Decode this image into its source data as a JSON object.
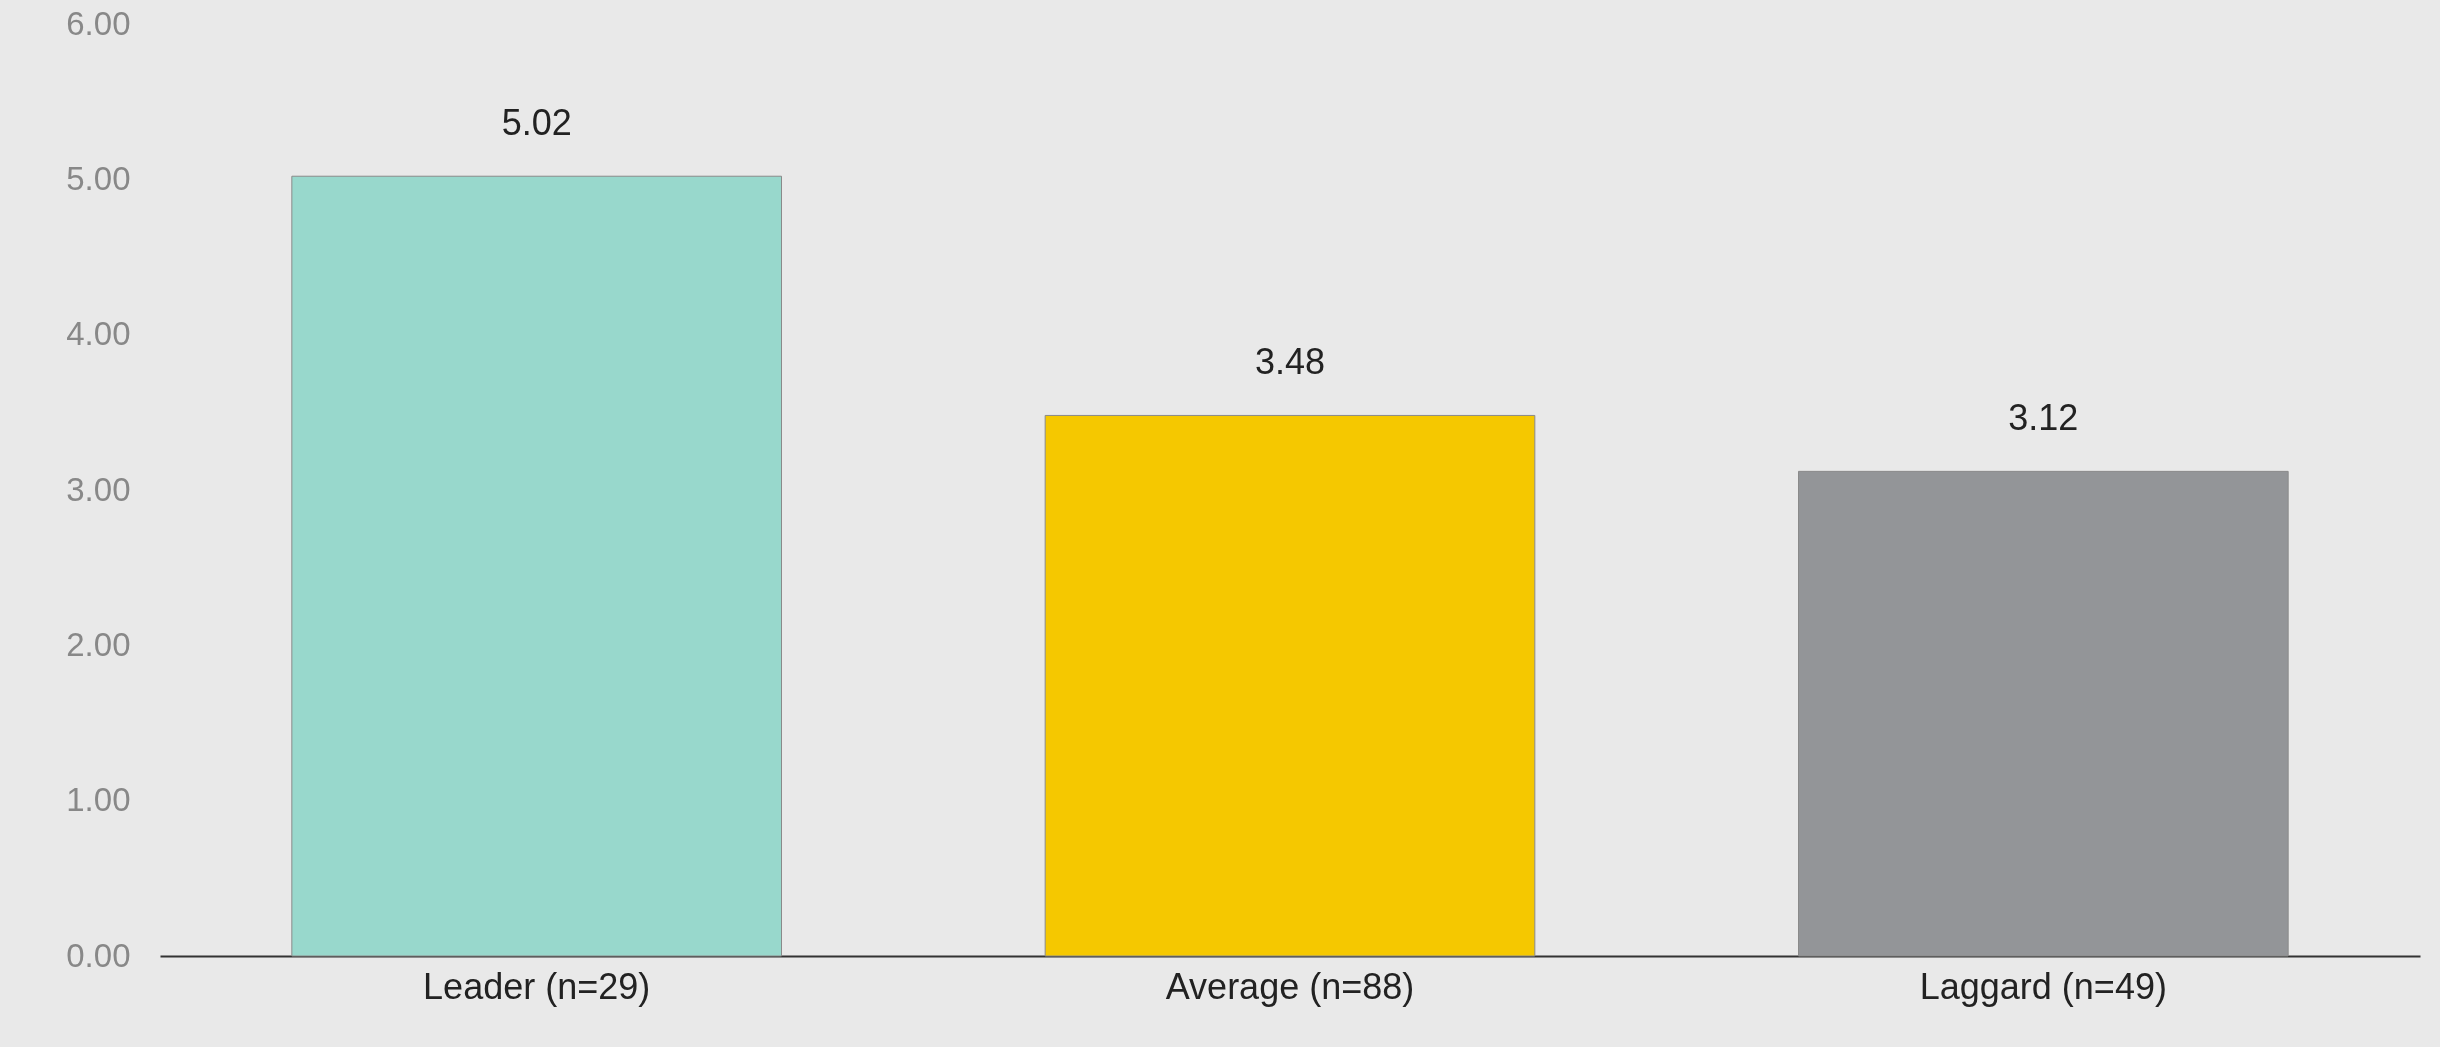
{
  "chart_data": {
    "type": "bar",
    "categories": [
      "Leader (n=29)",
      "Average (n=88)",
      "Laggard (n=49)"
    ],
    "values": [
      5.02,
      3.48,
      3.12
    ],
    "colors": [
      "#98d8cc",
      "#f5c800",
      "#939598"
    ],
    "ylim": [
      0,
      6
    ],
    "yticks": [
      {
        "value": 0,
        "label": "0.00"
      },
      {
        "value": 1,
        "label": "1.00"
      },
      {
        "value": 2,
        "label": "2.00"
      },
      {
        "value": 3,
        "label": "3.00"
      },
      {
        "value": 4,
        "label": "4.00"
      },
      {
        "value": 5,
        "label": "5.00"
      },
      {
        "value": 6,
        "label": "6.00"
      }
    ],
    "data_labels": true,
    "grid": false
  }
}
